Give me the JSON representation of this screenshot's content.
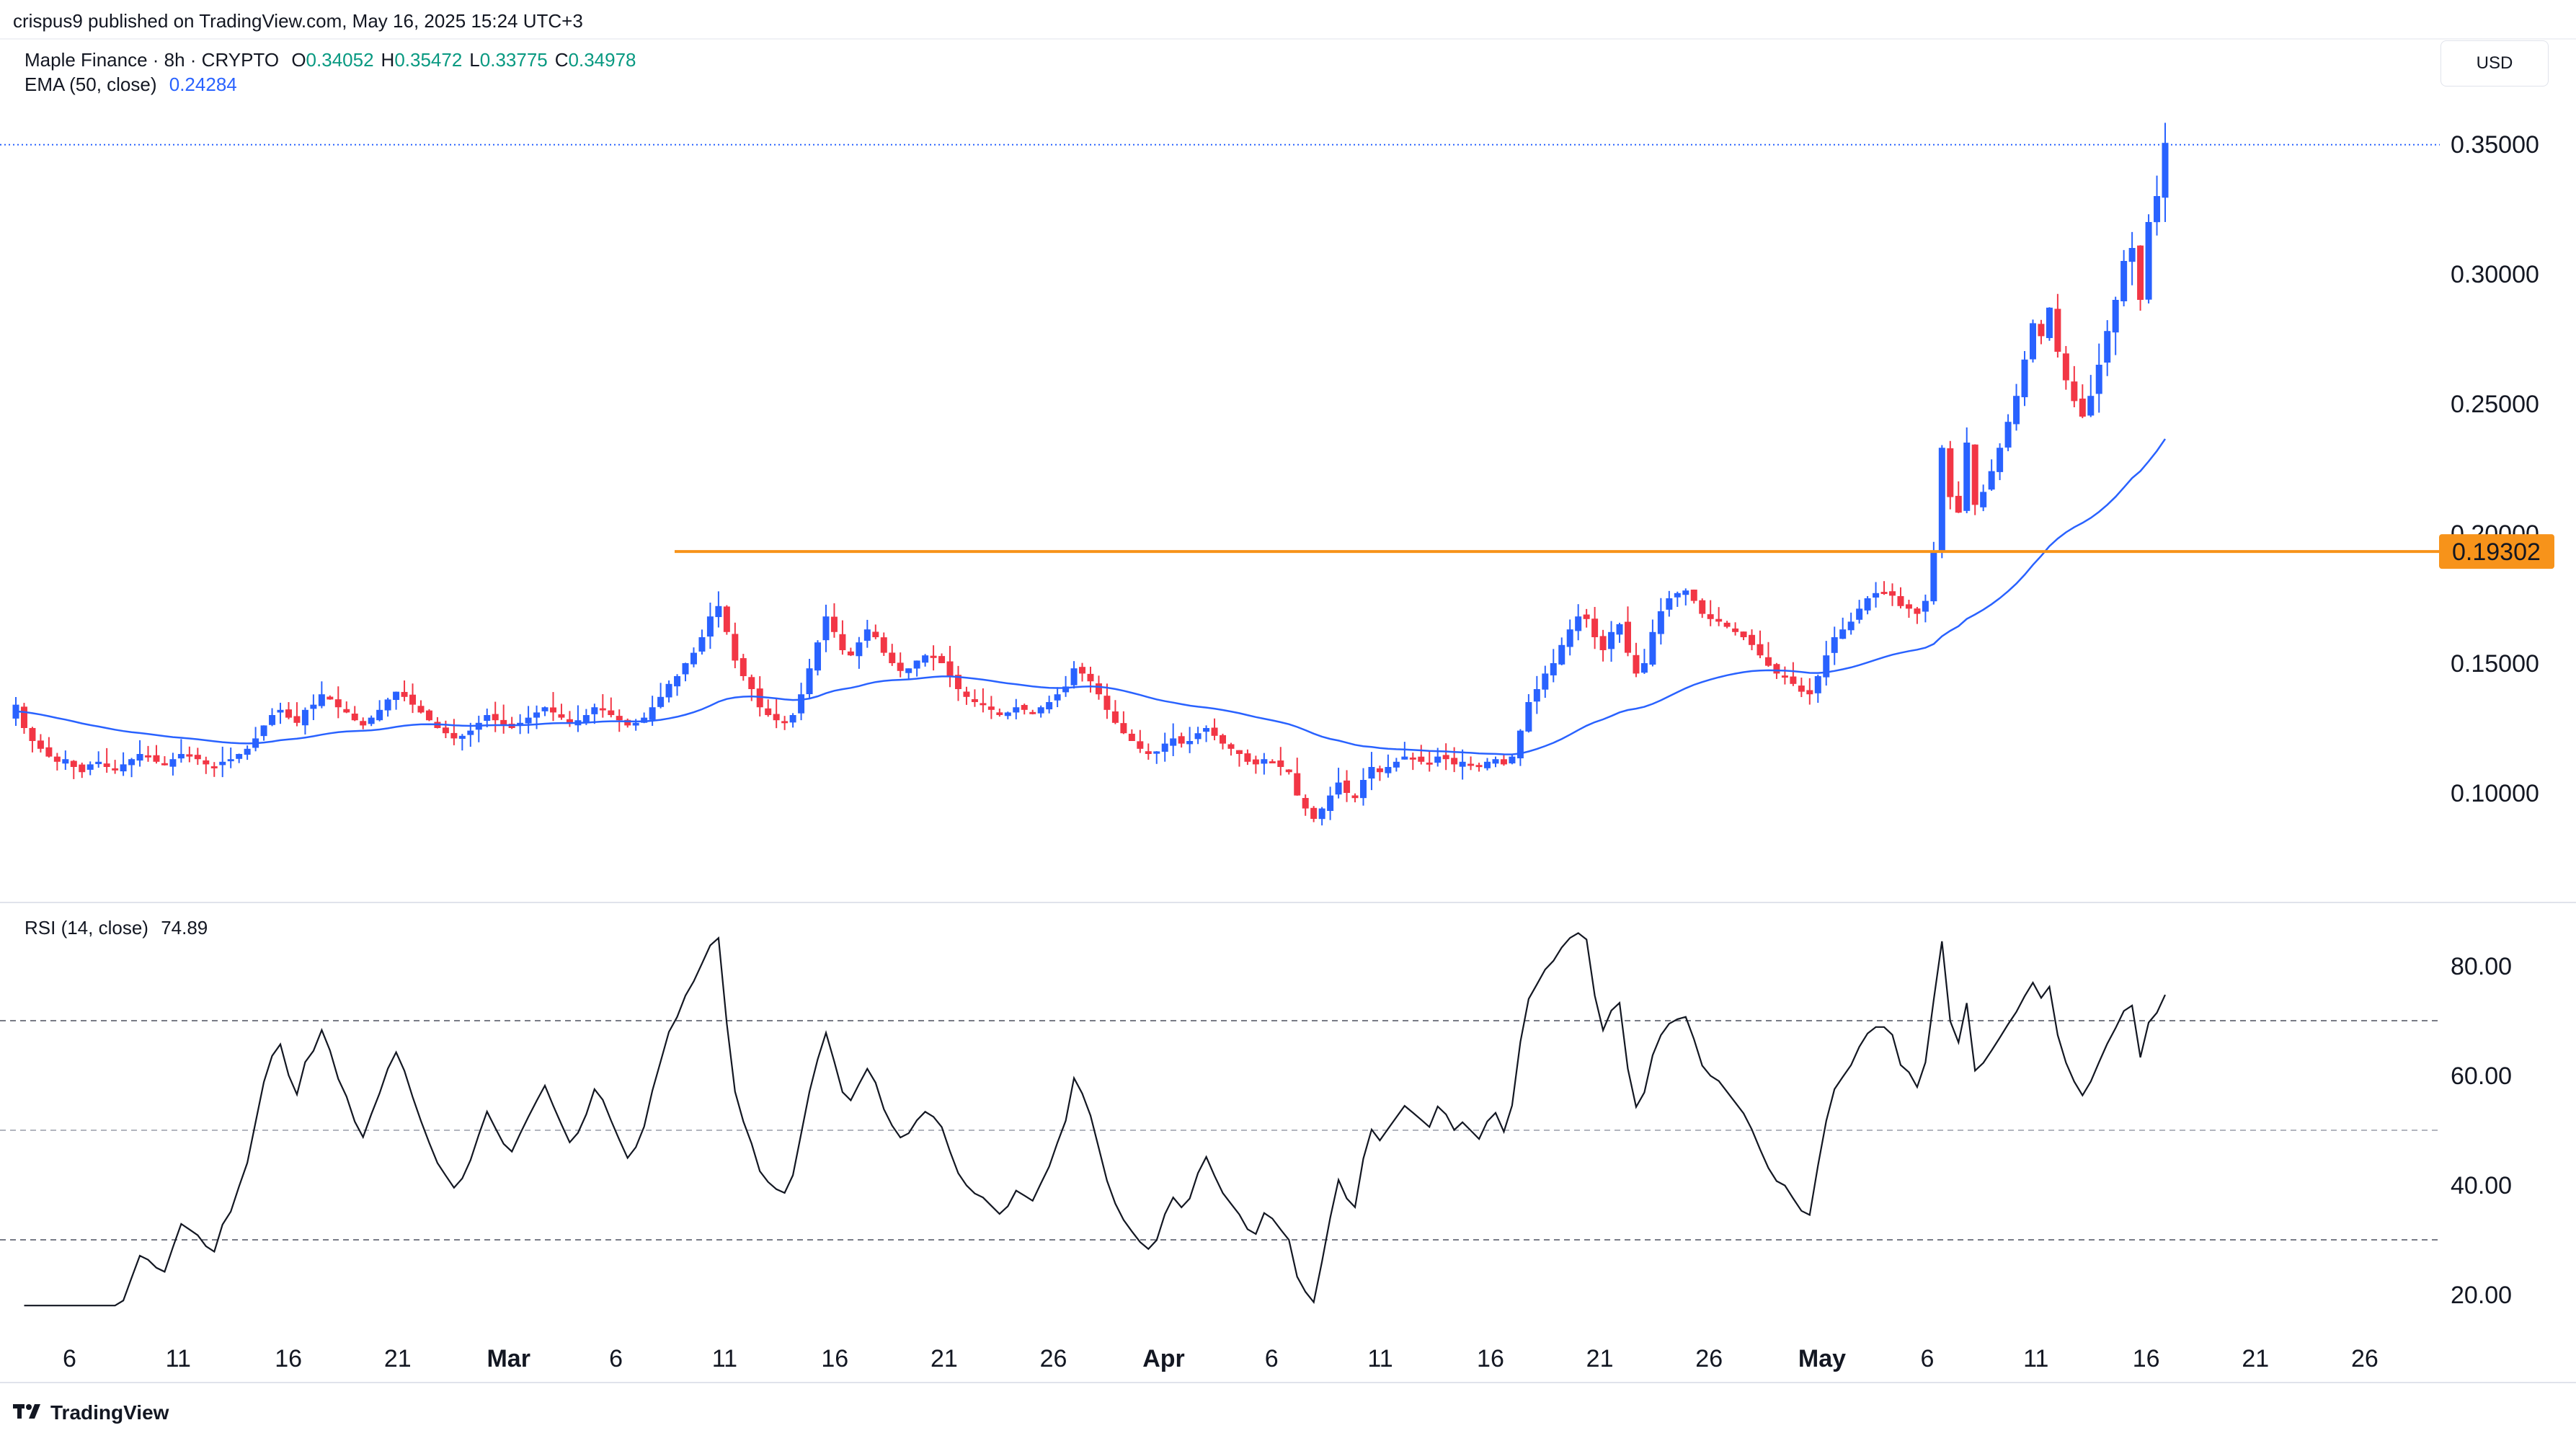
{
  "header": {
    "published": "crispus9 published on TradingView.com, May 16, 2025 15:24 UTC+3",
    "symbol": "Maple Finance · 8h · CRYPTO",
    "ohlc": [
      {
        "k": "O",
        "v": "0.34052"
      },
      {
        "k": "H",
        "v": "0.35472"
      },
      {
        "k": "L",
        "v": "0.33775"
      },
      {
        "k": "C",
        "v": "0.34978"
      }
    ],
    "ema_label": "EMA (50, close)",
    "ema_value": "0.24284",
    "currency": "USD"
  },
  "rsi_header": {
    "label": "RSI (14, close)",
    "value": "74.89"
  },
  "brand": "TradingView",
  "colors": {
    "up": "#2962ff",
    "down": "#f23645",
    "ema": "#2962ff",
    "level": "#f7931a",
    "rsi": "#131722"
  },
  "chart_data": [
    {
      "type": "candlestick",
      "title": "Maple Finance · 8h · CRYPTO",
      "ylim": [
        0.075,
        0.362
      ],
      "price_axis_ticks": [
        "0.10000",
        "0.15000",
        "0.20000",
        "0.25000",
        "0.30000",
        "0.35000"
      ],
      "x_ticks": [
        "6",
        "11",
        "16",
        "21",
        "Mar",
        "6",
        "11",
        "16",
        "21",
        "26",
        "Apr",
        "6",
        "11",
        "16",
        "21",
        "26",
        "May",
        "6",
        "11",
        "16",
        "21",
        "26"
      ],
      "x_range_days": {
        "first_tick_label": "6",
        "labels_per_day_note": "candles every 8 hours"
      },
      "current_price_line": 0.34978,
      "horizontal_level": {
        "value": 0.19302,
        "label": "0.19302"
      },
      "series_close": [
        0.134,
        0.125,
        0.12,
        0.117,
        0.114,
        0.112,
        0.113,
        0.11,
        0.108,
        0.111,
        0.112,
        0.11,
        0.109,
        0.111,
        0.113,
        0.115,
        0.114,
        0.112,
        0.111,
        0.113,
        0.115,
        0.114,
        0.113,
        0.111,
        0.11,
        0.112,
        0.113,
        0.115,
        0.117,
        0.121,
        0.126,
        0.13,
        0.132,
        0.129,
        0.127,
        0.132,
        0.134,
        0.138,
        0.136,
        0.133,
        0.131,
        0.128,
        0.126,
        0.129,
        0.132,
        0.136,
        0.139,
        0.137,
        0.134,
        0.131,
        0.128,
        0.125,
        0.123,
        0.121,
        0.122,
        0.124,
        0.127,
        0.13,
        0.128,
        0.126,
        0.125,
        0.127,
        0.129,
        0.131,
        0.133,
        0.131,
        0.129,
        0.127,
        0.128,
        0.13,
        0.133,
        0.132,
        0.13,
        0.128,
        0.126,
        0.127,
        0.129,
        0.133,
        0.137,
        0.142,
        0.145,
        0.15,
        0.154,
        0.16,
        0.168,
        0.172,
        0.162,
        0.151,
        0.145,
        0.14,
        0.133,
        0.13,
        0.128,
        0.127,
        0.13,
        0.138,
        0.148,
        0.158,
        0.168,
        0.162,
        0.155,
        0.153,
        0.158,
        0.163,
        0.16,
        0.154,
        0.15,
        0.147,
        0.148,
        0.151,
        0.153,
        0.152,
        0.15,
        0.145,
        0.14,
        0.137,
        0.135,
        0.134,
        0.132,
        0.13,
        0.131,
        0.133,
        0.132,
        0.131,
        0.133,
        0.135,
        0.138,
        0.141,
        0.148,
        0.146,
        0.143,
        0.138,
        0.132,
        0.127,
        0.123,
        0.12,
        0.117,
        0.115,
        0.116,
        0.119,
        0.121,
        0.119,
        0.12,
        0.123,
        0.125,
        0.122,
        0.119,
        0.117,
        0.115,
        0.112,
        0.111,
        0.113,
        0.112,
        0.11,
        0.108,
        0.099,
        0.094,
        0.09,
        0.094,
        0.099,
        0.104,
        0.1,
        0.098,
        0.105,
        0.11,
        0.108,
        0.11,
        0.112,
        0.114,
        0.113,
        0.112,
        0.111,
        0.114,
        0.113,
        0.111,
        0.112,
        0.111,
        0.11,
        0.112,
        0.113,
        0.111,
        0.114,
        0.124,
        0.135,
        0.14,
        0.146,
        0.15,
        0.157,
        0.163,
        0.168,
        0.167,
        0.16,
        0.155,
        0.162,
        0.165,
        0.154,
        0.146,
        0.15,
        0.162,
        0.17,
        0.175,
        0.177,
        0.178,
        0.174,
        0.169,
        0.167,
        0.166,
        0.164,
        0.162,
        0.16,
        0.157,
        0.153,
        0.149,
        0.146,
        0.145,
        0.142,
        0.139,
        0.138,
        0.145,
        0.153,
        0.16,
        0.163,
        0.166,
        0.171,
        0.175,
        0.177,
        0.177,
        0.176,
        0.172,
        0.171,
        0.169,
        0.174,
        0.193,
        0.233,
        0.214,
        0.208,
        0.235,
        0.211,
        0.216,
        0.224,
        0.233,
        0.243,
        0.253,
        0.267,
        0.281,
        0.276,
        0.287,
        0.27,
        0.259,
        0.251,
        0.245,
        0.253,
        0.265,
        0.278,
        0.29,
        0.305,
        0.31,
        0.29,
        0.32,
        0.33,
        0.3505
      ],
      "ema_50_last": 0.24284
    },
    {
      "type": "line",
      "title": "RSI (14, close)",
      "ylim": [
        16,
        88
      ],
      "y_ticks": [
        "20.00",
        "40.00",
        "60.00",
        "80.00"
      ],
      "bands": {
        "upper": 70,
        "middle": 50,
        "lower": 30
      },
      "last_value": 74.89
    }
  ]
}
